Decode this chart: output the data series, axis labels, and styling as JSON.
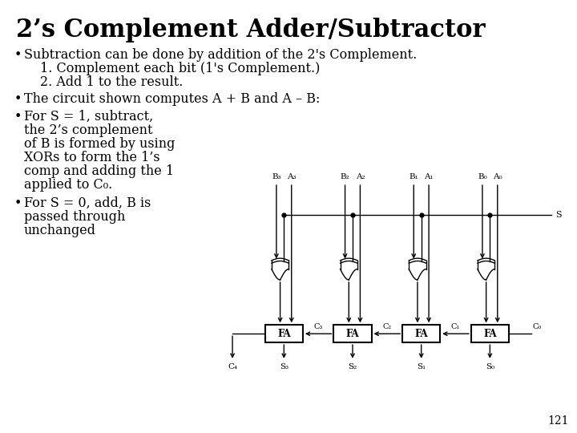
{
  "title": "2’s Complement Adder/Subtractor",
  "bg_color": "#ffffff",
  "title_color": "#000000",
  "title_fontsize": 22,
  "body_fontsize": 11.5,
  "bullet1": "Subtraction can be done by addition of the 2's Complement.",
  "sub1": "1. Complement each bit (1's Complement.)",
  "sub2": "2. Add 1 to the result.",
  "bullet2": "The circuit shown computes A + B and A – B:",
  "bullet3a": "For S = 1, subtract,",
  "bullet3b": "the 2’s complement",
  "bullet3c": "of B is formed by using",
  "bullet3d": "XORs to form the 1’s",
  "bullet3e": "comp and adding the 1",
  "bullet3f": "applied to C₀.",
  "bullet4a": "For S = 0, add, B is",
  "bullet4b": "passed through",
  "bullet4c": "unchanged",
  "page_num": "121",
  "bi_labels": [
    "B₃",
    "B₂",
    "B₁",
    "B₀"
  ],
  "ai_labels": [
    "A₃",
    "A₂",
    "A₁",
    "A₀"
  ],
  "si_labels": [
    "S₃",
    "S₂",
    "S₁",
    "S₀"
  ],
  "ci_labels": [
    "C₃",
    "C₂",
    "C₁",
    "C₀"
  ],
  "c4_label": "C₄",
  "s_label": "S"
}
